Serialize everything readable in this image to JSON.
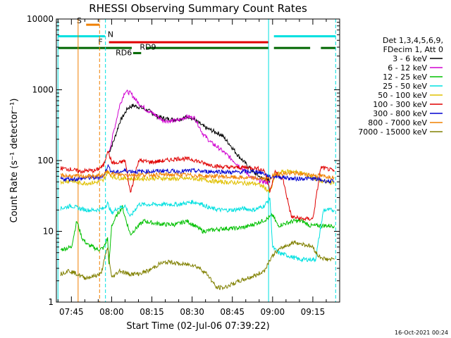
{
  "chart_data": {
    "type": "line",
    "title": "RHESSI Observing Summary Count Rates",
    "xlabel": "Start Time (02-Jul-06 07:39:22)",
    "ylabel": "Count Rate (s⁻¹ detector⁻¹)",
    "x_ticks": [
      "07:45",
      "08:00",
      "08:15",
      "08:30",
      "08:45",
      "09:00",
      "09:15"
    ],
    "x_tick_minutes": [
      45,
      60,
      75,
      90,
      105,
      120,
      135
    ],
    "x_range_minutes": [
      39.4,
      145
    ],
    "y_scale": "log",
    "y_ticks": [
      "1",
      "10",
      "100",
      "1000",
      "10000"
    ],
    "y_range": [
      1,
      10000
    ],
    "legend_header": [
      "Det 1,3,4,5,6,9,",
      "FDecim 1, Att 0"
    ],
    "series": [
      {
        "name": "3 - 6 keV",
        "color": "#000000",
        "points": [
          [
            59,
            130
          ],
          [
            61,
            200
          ],
          [
            63,
            350
          ],
          [
            66,
            550
          ],
          [
            68,
            600
          ],
          [
            71,
            560
          ],
          [
            74,
            500
          ],
          [
            77,
            420
          ],
          [
            80,
            390
          ],
          [
            83,
            380
          ],
          [
            86,
            390
          ],
          [
            89,
            420
          ],
          [
            92,
            350
          ],
          [
            95,
            290
          ],
          [
            98,
            260
          ],
          [
            101,
            230
          ],
          [
            104,
            170
          ],
          [
            107,
            120
          ],
          [
            110,
            90
          ],
          [
            113,
            68
          ],
          [
            116,
            56
          ],
          [
            119,
            52
          ]
        ]
      },
      {
        "name": "6 - 12 keV",
        "color": "#d000d0",
        "points": [
          [
            59,
            130
          ],
          [
            61,
            280
          ],
          [
            63,
            600
          ],
          [
            65,
            950
          ],
          [
            67,
            900
          ],
          [
            70,
            650
          ],
          [
            73,
            520
          ],
          [
            76,
            450
          ],
          [
            79,
            370
          ],
          [
            82,
            360
          ],
          [
            85,
            370
          ],
          [
            88,
            420
          ],
          [
            91,
            400
          ],
          [
            94,
            240
          ],
          [
            97,
            180
          ],
          [
            100,
            150
          ],
          [
            103,
            120
          ],
          [
            106,
            95
          ],
          [
            109,
            75
          ],
          [
            112,
            58
          ],
          [
            115,
            52
          ],
          [
            119,
            48
          ]
        ]
      },
      {
        "name": "12 - 25 keV",
        "color": "#00c000",
        "points": [
          [
            41,
            5.5
          ],
          [
            45,
            6
          ],
          [
            47,
            14
          ],
          [
            49,
            8
          ],
          [
            51,
            6.5
          ],
          [
            53,
            6
          ],
          [
            55,
            5.5
          ],
          [
            57,
            5.8
          ],
          [
            58.5,
            8
          ],
          [
            59,
            3.3
          ],
          [
            60,
            12
          ],
          [
            62,
            17
          ],
          [
            64,
            22
          ],
          [
            65,
            16
          ],
          [
            67,
            9
          ],
          [
            69,
            11
          ],
          [
            72,
            14
          ],
          [
            76,
            13
          ],
          [
            80,
            12.5
          ],
          [
            84,
            12.5
          ],
          [
            88,
            14
          ],
          [
            91,
            12
          ],
          [
            94,
            10
          ],
          [
            98,
            10.5
          ],
          [
            102,
            11
          ],
          [
            106,
            11
          ],
          [
            110,
            11.5
          ],
          [
            114,
            13
          ],
          [
            118,
            15
          ],
          [
            120,
            17
          ],
          [
            122,
            12
          ],
          [
            125,
            13
          ],
          [
            128,
            14
          ],
          [
            131,
            14
          ],
          [
            134,
            12
          ],
          [
            137,
            12
          ],
          [
            140,
            12
          ],
          [
            143,
            12
          ]
        ]
      },
      {
        "name": "25 - 50 keV",
        "color": "#00e0e0",
        "points": [
          [
            41,
            21
          ],
          [
            45,
            23
          ],
          [
            48,
            21
          ],
          [
            51,
            20
          ],
          [
            54,
            20
          ],
          [
            57,
            21
          ],
          [
            58.5,
            25
          ],
          [
            60,
            18
          ],
          [
            62,
            21
          ],
          [
            65,
            23
          ],
          [
            67,
            16
          ],
          [
            70,
            24
          ],
          [
            75,
            24
          ],
          [
            80,
            24
          ],
          [
            85,
            24
          ],
          [
            90,
            26
          ],
          [
            93,
            25
          ],
          [
            97,
            21
          ],
          [
            101,
            20
          ],
          [
            105,
            20
          ],
          [
            109,
            21
          ],
          [
            113,
            20
          ],
          [
            117,
            23
          ],
          [
            119,
            30
          ],
          [
            120,
            6
          ],
          [
            122,
            5
          ],
          [
            126,
            4.5
          ],
          [
            130,
            4
          ],
          [
            133,
            4
          ],
          [
            136,
            4
          ],
          [
            139,
            20
          ],
          [
            143,
            20
          ]
        ]
      },
      {
        "name": "50 - 100 keV",
        "color": "#e0c000",
        "points": [
          [
            41,
            50
          ],
          [
            45,
            52
          ],
          [
            48,
            48
          ],
          [
            51,
            48
          ],
          [
            54,
            49
          ],
          [
            57,
            52
          ],
          [
            58.5,
            70
          ],
          [
            60,
            60
          ],
          [
            62,
            57
          ],
          [
            65,
            56
          ],
          [
            69,
            55
          ],
          [
            74,
            56
          ],
          [
            80,
            56
          ],
          [
            85,
            55
          ],
          [
            90,
            56
          ],
          [
            95,
            53
          ],
          [
            100,
            50
          ],
          [
            105,
            49
          ],
          [
            110,
            48
          ],
          [
            114,
            47
          ],
          [
            117,
            42
          ],
          [
            119,
            35
          ],
          [
            121,
            62
          ],
          [
            124,
            70
          ],
          [
            128,
            70
          ],
          [
            132,
            65
          ],
          [
            136,
            55
          ],
          [
            139,
            50
          ],
          [
            143,
            48
          ]
        ]
      },
      {
        "name": "100 - 300 keV",
        "color": "#e00000",
        "points": [
          [
            41,
            78
          ],
          [
            45,
            75
          ],
          [
            48,
            70
          ],
          [
            51,
            72
          ],
          [
            54,
            72
          ],
          [
            57,
            85
          ],
          [
            58.5,
            140
          ],
          [
            60,
            95
          ],
          [
            62,
            90
          ],
          [
            65,
            100
          ],
          [
            67,
            35
          ],
          [
            70,
            100
          ],
          [
            75,
            95
          ],
          [
            80,
            100
          ],
          [
            85,
            107
          ],
          [
            90,
            104
          ],
          [
            95,
            90
          ],
          [
            100,
            82
          ],
          [
            105,
            80
          ],
          [
            110,
            80
          ],
          [
            114,
            78
          ],
          [
            117,
            72
          ],
          [
            119,
            38
          ],
          [
            121,
            70
          ],
          [
            124,
            52
          ],
          [
            127,
            16
          ],
          [
            131,
            15
          ],
          [
            135,
            15
          ],
          [
            138,
            80
          ],
          [
            141,
            75
          ],
          [
            143,
            70
          ]
        ]
      },
      {
        "name": "300 - 800 keV",
        "color": "#0000d0",
        "points": [
          [
            41,
            55
          ],
          [
            45,
            55
          ],
          [
            48,
            55
          ],
          [
            51,
            57
          ],
          [
            54,
            57
          ],
          [
            57,
            60
          ],
          [
            58.5,
            85
          ],
          [
            60,
            70
          ],
          [
            62,
            68
          ],
          [
            65,
            72
          ],
          [
            69,
            70
          ],
          [
            74,
            70
          ],
          [
            80,
            72
          ],
          [
            85,
            70
          ],
          [
            90,
            72
          ],
          [
            95,
            70
          ],
          [
            100,
            70
          ],
          [
            105,
            68
          ],
          [
            110,
            70
          ],
          [
            114,
            70
          ],
          [
            117,
            65
          ],
          [
            119,
            58
          ],
          [
            121,
            60
          ],
          [
            124,
            58
          ],
          [
            128,
            55
          ],
          [
            132,
            56
          ],
          [
            136,
            55
          ],
          [
            139,
            52
          ],
          [
            143,
            50
          ]
        ]
      },
      {
        "name": "800 - 7000 keV",
        "color": "#f08000",
        "points": [
          [
            41,
            62
          ],
          [
            45,
            60
          ],
          [
            48,
            60
          ],
          [
            51,
            60
          ],
          [
            54,
            60
          ],
          [
            57,
            62
          ],
          [
            58.5,
            70
          ],
          [
            60,
            65
          ],
          [
            62,
            63
          ],
          [
            65,
            63
          ],
          [
            69,
            63
          ],
          [
            74,
            63
          ],
          [
            80,
            63
          ],
          [
            85,
            63
          ],
          [
            90,
            62
          ],
          [
            95,
            60
          ],
          [
            100,
            60
          ],
          [
            105,
            58
          ],
          [
            110,
            57
          ],
          [
            114,
            56
          ],
          [
            117,
            55
          ],
          [
            119,
            55
          ],
          [
            121,
            65
          ],
          [
            124,
            65
          ],
          [
            128,
            66
          ],
          [
            132,
            64
          ],
          [
            136,
            62
          ],
          [
            139,
            60
          ],
          [
            143,
            58
          ]
        ]
      },
      {
        "name": "7000 - 15000 keV",
        "color": "#808000",
        "points": [
          [
            41,
            2.5
          ],
          [
            44,
            2.8
          ],
          [
            47,
            2.5
          ],
          [
            50,
            2.2
          ],
          [
            53,
            2.3
          ],
          [
            56,
            2.5
          ],
          [
            58.5,
            6
          ],
          [
            60,
            2.2
          ],
          [
            63,
            2.8
          ],
          [
            66,
            2.5
          ],
          [
            70,
            2.5
          ],
          [
            74,
            2.8
          ],
          [
            78,
            3.5
          ],
          [
            82,
            3.7
          ],
          [
            86,
            3.4
          ],
          [
            90,
            3.4
          ],
          [
            93,
            3
          ],
          [
            96,
            2.4
          ],
          [
            99,
            1.6
          ],
          [
            102,
            1.6
          ],
          [
            105,
            1.8
          ],
          [
            108,
            2
          ],
          [
            111,
            2.2
          ],
          [
            114,
            2.4
          ],
          [
            117,
            2.8
          ],
          [
            119,
            4
          ],
          [
            121,
            5
          ],
          [
            124,
            6
          ],
          [
            128,
            7
          ],
          [
            132,
            6.5
          ],
          [
            135,
            6
          ],
          [
            137,
            4.5
          ],
          [
            140,
            4
          ],
          [
            143,
            4
          ]
        ]
      }
    ],
    "flag_bars": [
      {
        "label": "S",
        "color": "#f08000",
        "level": 8300,
        "start": 50.5,
        "end": 55.5
      },
      {
        "label": "N",
        "color": "#00e0e0",
        "level": 5700,
        "start": 40,
        "end": 57.5
      },
      {
        "label": "N",
        "color": "#00e0e0",
        "level": 5700,
        "start": 120.5,
        "end": 143.5
      },
      {
        "label": "F",
        "color": "#e00000",
        "level": 4700,
        "start": 59,
        "end": 118.5
      },
      {
        "label": "RD9",
        "color": "#006600",
        "level": 3900,
        "start": 40,
        "end": 67.5
      },
      {
        "label": "RD9",
        "color": "#006600",
        "level": 3900,
        "start": 73,
        "end": 118.5
      },
      {
        "label": "RD9",
        "color": "#006600",
        "level": 3900,
        "start": 120.5,
        "end": 134
      },
      {
        "label": "RD9",
        "color": "#006600",
        "level": 3900,
        "start": 138,
        "end": 143.5
      },
      {
        "label": "RD6",
        "color": "#006600",
        "level": 3300,
        "start": 68,
        "end": 71
      }
    ],
    "flag_labels": [
      "S",
      "N",
      "F",
      "RD9",
      "RD6"
    ],
    "vlines": [
      {
        "x": 40,
        "color": "#00e0e0",
        "style": "solid"
      },
      {
        "x": 47.5,
        "color": "#f08000",
        "style": "solid"
      },
      {
        "x": 55.5,
        "color": "#f08000",
        "style": "dashed"
      },
      {
        "x": 57.7,
        "color": "#00e0e0",
        "style": "dashed"
      },
      {
        "x": 118.5,
        "color": "#00e0e0",
        "style": "solid"
      },
      {
        "x": 143.5,
        "color": "#00e0e0",
        "style": "dashed"
      }
    ]
  },
  "timestamp": "16-Oct-2021 00:24"
}
